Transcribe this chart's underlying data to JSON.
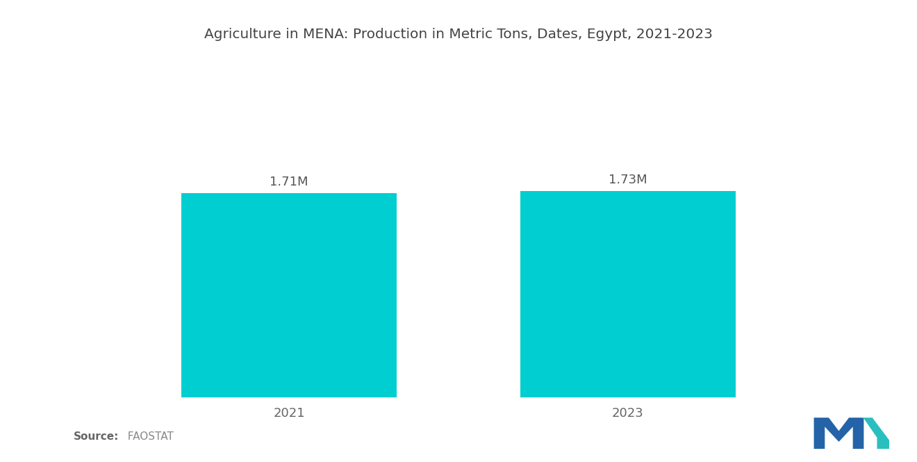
{
  "title": "Agriculture in MENA: Production in Metric Tons, Dates, Egypt, 2021-2023",
  "categories": [
    "2021",
    "2023"
  ],
  "values": [
    1.71,
    1.73
  ],
  "value_labels": [
    "1.71M",
    "1.73M"
  ],
  "bar_color": "#00CED1",
  "background_color": "#ffffff",
  "title_fontsize": 14.5,
  "label_fontsize": 13,
  "tick_fontsize": 13,
  "source_bold": "Source:",
  "source_normal": "  FAOSTAT",
  "ylim": [
    0,
    2.4
  ],
  "bar_width": 0.28,
  "x_positions": [
    0.28,
    0.72
  ]
}
